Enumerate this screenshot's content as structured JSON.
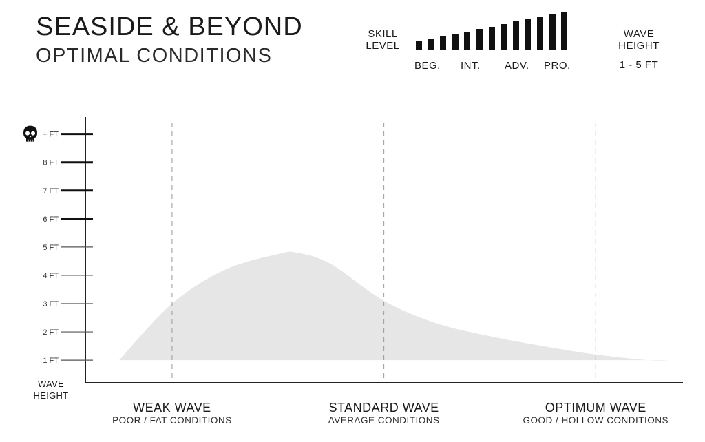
{
  "header": {
    "title": "SEASIDE & BEYOND",
    "subtitle": "OPTIMAL CONDITIONS"
  },
  "skill_level": {
    "label_line1": "SKILL",
    "label_line2": "LEVEL",
    "bar_count": 13,
    "ticks": [
      "BEG.",
      "INT.",
      "ADV.",
      "PRO."
    ]
  },
  "wave_height": {
    "label_line1": "WAVE",
    "label_line2": "HEIGHT",
    "value": "1 - 5 FT"
  },
  "chart_data": {
    "type": "area",
    "title": "",
    "ylabel_line1": "WAVE",
    "ylabel_line2": "HEIGHT",
    "y_ticks": [
      "1 FT",
      "2 FT",
      "3 FT",
      "4 FT",
      "5 FT",
      "6 FT",
      "7 FT",
      "8 FT",
      "+ FT"
    ],
    "y_tick_values": [
      1,
      2,
      3,
      4,
      5,
      6,
      7,
      8,
      9
    ],
    "ylim": [
      0.2,
      9.6
    ],
    "xlim": [
      0,
      2.6
    ],
    "categories": [
      {
        "name": "WEAK WAVE",
        "desc": "POOR / FAT CONDITIONS",
        "x": 0.25
      },
      {
        "name": "STANDARD WAVE",
        "desc": "AVERAGE CONDITIONS",
        "x": 1.25
      },
      {
        "name": "OPTIMUM WAVE",
        "desc": "GOOD / HOLLOW CONDITIONS",
        "x": 2.25
      }
    ],
    "series": [
      {
        "x": [
          0.0,
          0.25,
          0.5,
          0.75,
          0.84,
          1.0,
          1.25,
          1.5,
          1.75,
          2.0,
          2.25,
          2.5,
          2.6
        ],
        "y": [
          1.0,
          3.0,
          4.2,
          4.75,
          4.8,
          4.4,
          3.1,
          2.3,
          1.85,
          1.5,
          1.2,
          1.0,
          1.0
        ]
      }
    ],
    "fill_color": "#e6e6e6",
    "axis_color": "#222222",
    "grid": false
  }
}
